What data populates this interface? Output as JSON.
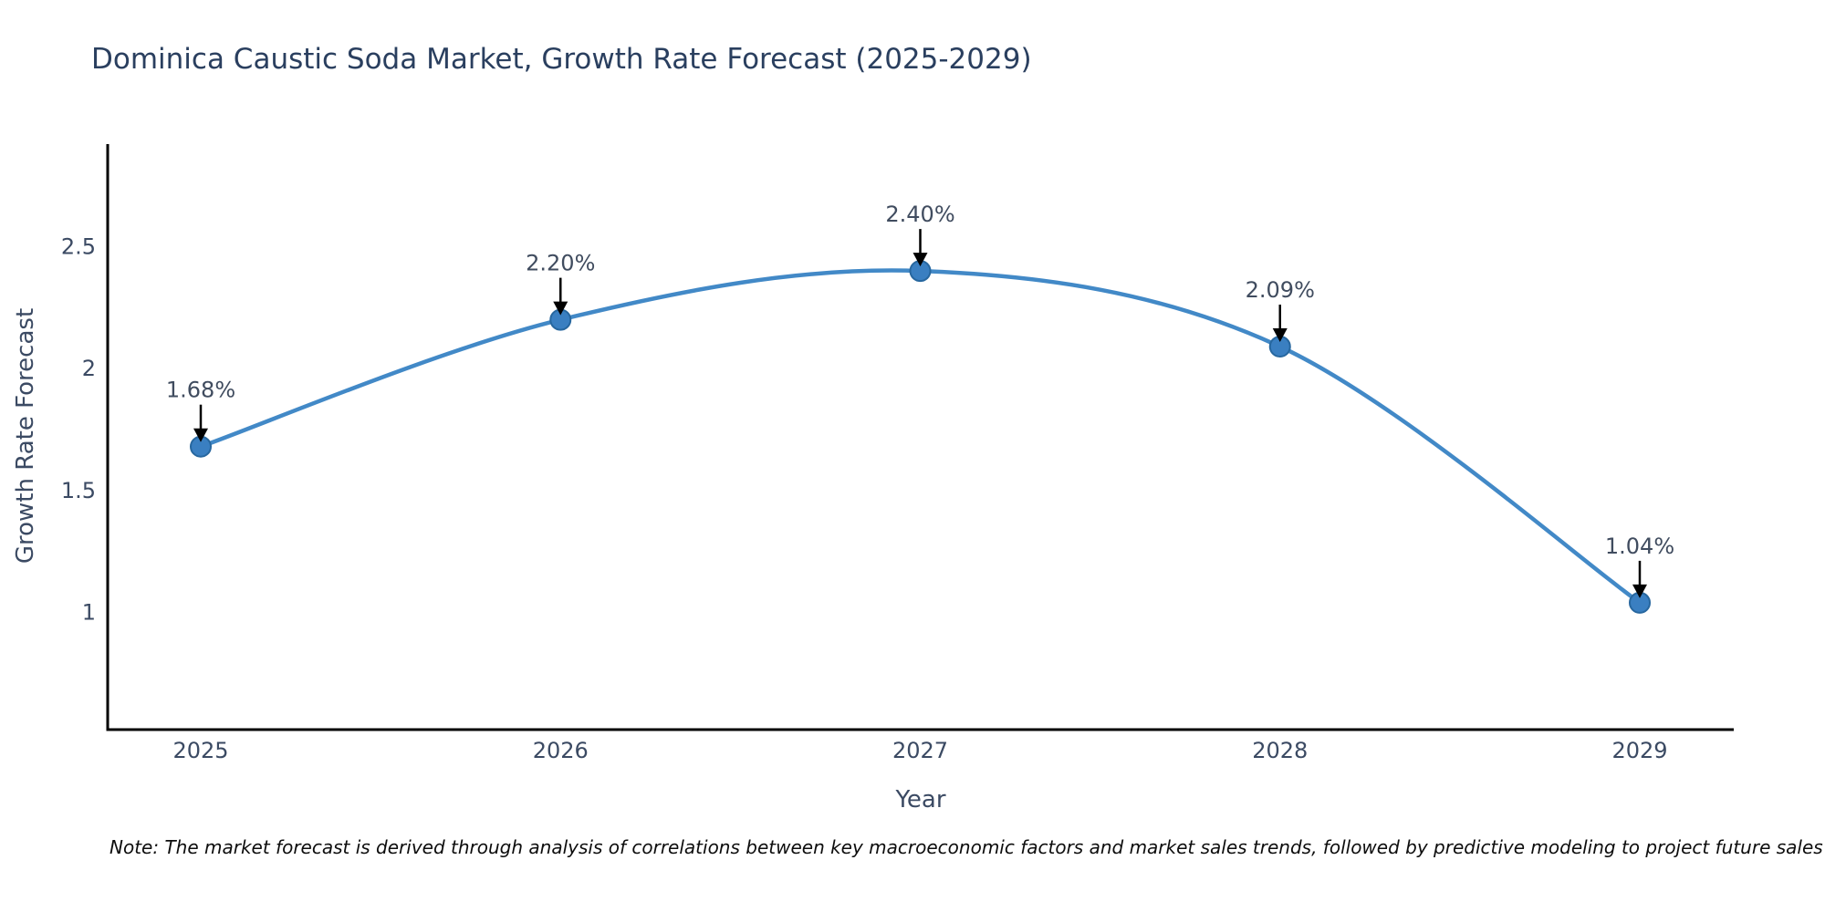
{
  "chart_data": {
    "type": "line",
    "title": "Dominica Caustic Soda Market, Growth Rate Forecast (2025-2029)",
    "xlabel": "Year",
    "ylabel": "Growth Rate Forecast",
    "categories": [
      "2025",
      "2026",
      "2027",
      "2028",
      "2029"
    ],
    "series": [
      {
        "name": "Growth Rate Forecast",
        "values": [
          1.68,
          2.2,
          2.4,
          2.09,
          1.04
        ],
        "point_labels": [
          "1.68%",
          "2.20%",
          "2.40%",
          "2.09%",
          "1.04%"
        ]
      }
    ],
    "yticks": [
      1,
      1.5,
      2,
      2.5
    ],
    "ytick_labels": [
      "1",
      "1.5",
      "2",
      "2.5"
    ],
    "ylim": [
      0.52,
      2.92
    ],
    "grid": false,
    "legend_position": "none",
    "line_color": "#4289c7",
    "marker_fill": "#3a7fc1",
    "marker_edge": "#27679f",
    "axis_color": "#000000",
    "annotation_arrow_color": "#000000",
    "tick_text_color": "#3b4a63",
    "title_color": "#2a3f5f"
  },
  "footer": {
    "note": "Note: The market forecast is derived through analysis of correlations between key macroeconomic factors and market sales trends, followed by predictive modeling to project future sales"
  }
}
